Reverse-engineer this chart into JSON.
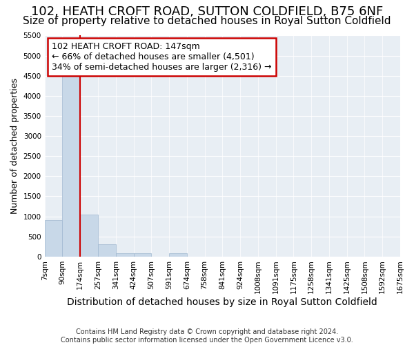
{
  "title": "102, HEATH CROFT ROAD, SUTTON COLDFIELD, B75 6NF",
  "subtitle": "Size of property relative to detached houses in Royal Sutton Coldfield",
  "xlabel": "Distribution of detached houses by size in Royal Sutton Coldfield",
  "ylabel": "Number of detached properties",
  "footnote": "Contains HM Land Registry data © Crown copyright and database right 2024.\nContains public sector information licensed under the Open Government Licence v3.0.",
  "bin_labels": [
    "7sqm",
    "90sqm",
    "174sqm",
    "257sqm",
    "341sqm",
    "424sqm",
    "507sqm",
    "591sqm",
    "674sqm",
    "758sqm",
    "841sqm",
    "924sqm",
    "1008sqm",
    "1091sqm",
    "1175sqm",
    "1258sqm",
    "1341sqm",
    "1425sqm",
    "1508sqm",
    "1592sqm",
    "1675sqm"
  ],
  "bar_heights": [
    900,
    4550,
    1050,
    305,
    75,
    75,
    0,
    75,
    0,
    0,
    0,
    0,
    0,
    0,
    0,
    0,
    0,
    0,
    0,
    0
  ],
  "bar_color": "#c8d8e8",
  "bar_edge_color": "#a0b8d0",
  "property_line_x": 1.5,
  "property_line_color": "#cc0000",
  "ylim": [
    0,
    5500
  ],
  "yticks": [
    0,
    500,
    1000,
    1500,
    2000,
    2500,
    3000,
    3500,
    4000,
    4500,
    5000,
    5500
  ],
  "annotation_text": "102 HEATH CROFT ROAD: 147sqm\n← 66% of detached houses are smaller (4,501)\n34% of semi-detached houses are larger (2,316) →",
  "annotation_box_color": "#cc0000",
  "background_color": "#e8eef4",
  "grid_color": "#ffffff",
  "title_fontsize": 13,
  "subtitle_fontsize": 11,
  "xlabel_fontsize": 10,
  "ylabel_fontsize": 9,
  "tick_fontsize": 7.5,
  "annotation_fontsize": 9,
  "footnote_fontsize": 7
}
